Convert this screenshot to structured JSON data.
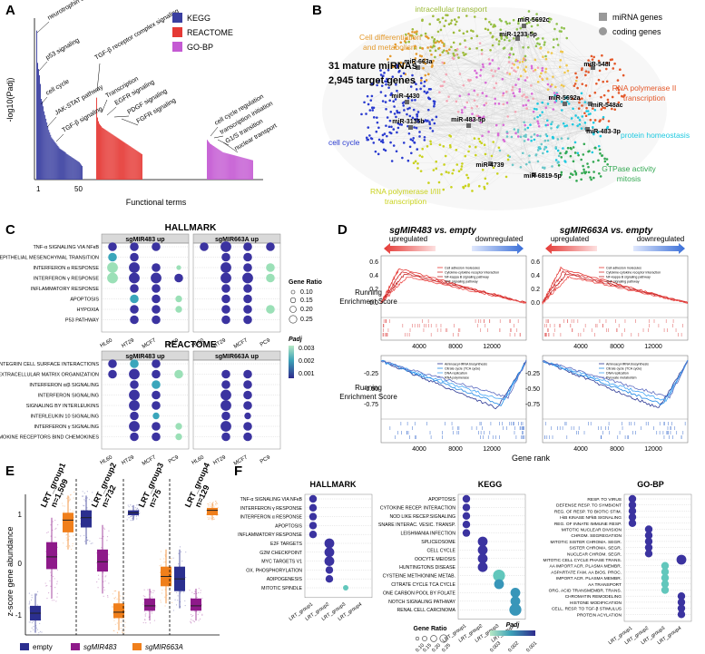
{
  "panels": {
    "A": {
      "letter": "A",
      "ylabel": "-log10(Padj)",
      "xlabel": "Functional terms",
      "legend": [
        {
          "label": "KEGG",
          "color": "#3a3fa0"
        },
        {
          "label": "REACTOME",
          "color": "#e53935"
        },
        {
          "label": "GO-BP",
          "color": "#c45ad3"
        }
      ],
      "annotations": {
        "kegg": [
          "neurotrophin signaling",
          "p53 signaling",
          "cell cycle",
          "JAK-STAT pathway",
          "TGF-β signaling"
        ],
        "reactome": [
          "TGF-β receptor complex signaling",
          "Transcription",
          "EGFR signaling",
          "PDGF signaling",
          "FGFR signaling"
        ],
        "gobp": [
          "cell cycle regulation",
          "transcription initiation",
          "G1/S transition",
          "nuclear transport"
        ]
      },
      "tick1": "1",
      "tick50": "50"
    },
    "B": {
      "letter": "B",
      "summary_line1": "31 mature miRNAs",
      "summary_line2": "2,945 target genes",
      "legend_mirna": "miRNA genes",
      "legend_coding": "coding genes",
      "mirnas": [
        "miR-663a",
        "miR-5692c",
        "miR-1233-5p",
        "miR-548I",
        "miR-4430",
        "miR-3135b",
        "miR-483-5p",
        "miR-5692a",
        "miR-548ac",
        "miR-483-3p",
        "miR-4739",
        "miR-6819-5p"
      ],
      "clusters": [
        {
          "label": "intracellular transport",
          "color": "#9dbb3a"
        },
        {
          "label": "Cell differentiation\nand metabolism",
          "color": "#e49a2e"
        },
        {
          "label": "RNA polymerase II\ntranscription",
          "color": "#e4582a"
        },
        {
          "label": "cell cycle",
          "color": "#2a3bd0"
        },
        {
          "label": "protein homeostasis",
          "color": "#1fc9e0"
        },
        {
          "label": "GTPase activity\nmitosis",
          "color": "#33a852"
        },
        {
          "label": "RNA polymerase I/III\ntranscription",
          "color": "#c9d21d"
        }
      ]
    },
    "C": {
      "letter": "C",
      "hallmark_title": "HALLMARK",
      "reactome_title": "REACTOME",
      "strip_left": "sgMIR483 up",
      "strip_right": "sgMIR663A up",
      "cell_lines": [
        "HL60",
        "HT29",
        "MCF7",
        "PC9"
      ],
      "hallmark_terms": [
        "TNF-α SIGNALING VIA NFκB",
        "EPITHELIAL MESENCHYMAL TRANSITION",
        "INTERFERON α RESPONSE",
        "INTERFERON γ RESPONSE",
        "INFLAMMATORY RESPONSE",
        "APOPTOSIS",
        "HYPOXIA",
        "P53 PATHWAY"
      ],
      "reactome_terms": [
        "INTEGRIN CELL SURFACE INTERACTIONS",
        "EXTRACELLULAR MATRIX ORGANIZATION",
        "INTERFERON α/β SIGNALING",
        "INTERFERON SIGNALING",
        "SIGNALING BY INTERLEUKINS",
        "INTERLEUKIN 10 SIGNALING",
        "INTERFERON γ SIGNALING",
        "CHEMOKINE RECEPTORS BIND CHEMOKINES"
      ],
      "gene_ratio_title": "Gene Ratio",
      "gene_ratio_values": [
        "0.10",
        "0.15",
        "0.20",
        "0.25"
      ],
      "padj_title": "Padj",
      "padj_values": [
        "0.003",
        "0.002",
        "0.001"
      ]
    },
    "D": {
      "letter": "D",
      "titles": [
        "sgMIR483 vs. empty",
        "sgMIR663A vs. empty"
      ],
      "upregulated": "upregulated",
      "downregulated": "downregulated",
      "ylabel_line1": "Running",
      "ylabel_line2": "Enrichment Score",
      "top_ticks": [
        "0.6",
        "0.4",
        "0.2",
        "0.0"
      ],
      "bottom_ticks": [
        "-0.25",
        "-0.50",
        "-0.75"
      ],
      "x_ticks": [
        "4000",
        "8000",
        "12000"
      ],
      "xlabel": "Gene rank",
      "up_legend": [
        "Cell adhesion molecules",
        "Cytokine-cytokine receptor interaction",
        "NF-kappa B signaling pathway",
        "TNF signaling pathway"
      ],
      "down_legend": [
        "Aminoacyl-tRNA biosynthesis",
        "Citrate cycle (TCA cycle)",
        "DNA replication",
        "RNA polymerase"
      ],
      "down_legend_right": [
        "Aminoacyl-tRNA biosynthesis",
        "Citrate cycle (TCA cycle)",
        "DNA replication",
        "Pyruvate metabolism"
      ]
    },
    "E": {
      "letter": "E",
      "ylabel": "z-score gene abundance",
      "groups": [
        {
          "name": "LRT_group1",
          "n": "n=1,509"
        },
        {
          "name": "LRT_group2",
          "n": "n=732"
        },
        {
          "name": "LRT_group3",
          "n": "n=75"
        },
        {
          "name": "LRT_group4",
          "n": "n=129"
        }
      ],
      "yticks": [
        "1",
        "0",
        "-1"
      ],
      "legend": [
        {
          "label": "empty",
          "color": "#2b2f8f"
        },
        {
          "label": "sgMIR483",
          "color": "#8e1a8a"
        },
        {
          "label": "sgMIR663A",
          "color": "#f07f1b"
        }
      ]
    },
    "F": {
      "letter": "F",
      "titles": [
        "HALLMARK",
        "KEGG",
        "GO-BP"
      ],
      "groups": [
        "LRT_group1",
        "LRT_group2",
        "LRT_group3",
        "LRT_group4"
      ],
      "hallmark_terms": [
        "TNF-α SIGNALING VIA NFκB",
        "INTERFERON γ RESPONSE",
        "INTERFERON α RESPONSE",
        "APOPTOSIS",
        "INFLAMMATORY RESPONSE",
        "E2F TARGETS",
        "G2M CHECKPOINT",
        "MYC TARGETS V1",
        "OX. PHOSPHORYLATION",
        "ADIPOGENESIS",
        "MITOTIC SPINDLE"
      ],
      "kegg_terms": [
        "APOPTOSIS",
        "CYTOKINE RECEP. INTERACTION",
        "NOD LIKE RECEP.SIGNALING",
        "SNARE INTERAC. VESIC. TRANSP.",
        "LEISHMANIA INFECTION",
        "SPLICEOSOME",
        "CELL CYCLE",
        "OOCYTE MEIOSIS",
        "HUNTINGTONS DISEASE",
        "CYSTEINE METHIONINE METAB.",
        "CITRATE CYCLE TCA CYCLE",
        "ONE CARBON POOL BY FOLATE",
        "NOTCH SIGNALING PATHWAY",
        "RENAL CELL CARCINOMA"
      ],
      "gobp_terms": [
        "RESP. TO VIRUS",
        "DEFENSE RESP. TO SYMBIONT",
        "REG. OF RESP. TO BIOTIC STIM.",
        "I-kB KINASE NFkB SIGNALING",
        "REG. OF INNATE IMMUNE RESP.",
        "MITOTIC NUCLEAR DIVISION",
        "CHROM. SEGREGATION",
        "MITOTIC SISTER CHROMA. SEGR.",
        "SISTER CHROMA. SEGR.",
        "NUCLEAR CHROM. SEGR.",
        "MITOTIC CELL CYCLE PHASE TRANS.",
        "AA IMPORT ACR. PLASMA MEMBR.",
        "ASPARTATE FAM. AA BIOS. PROC.",
        "IMPORT ACR. PLASMA MEMBR.",
        "AA TRANSPORT",
        "ORG. ACID TRANSMEMBR. TRANS.",
        "CHROMATIN REMODELING",
        "HISTONE MODIFICATION",
        "CELL. RESP. TO TGF-β STIMULUS",
        "PROTEIN ACYLATION"
      ],
      "gene_ratio_title": "Gene Ratio",
      "gene_ratio_values": [
        "0.10",
        "0.15",
        "0.20",
        "0.25"
      ],
      "padj_title": "Padj",
      "padj_values": [
        "0.003",
        "0.002",
        "0.001"
      ]
    }
  },
  "chart_data": [
    {
      "type": "bar",
      "panel": "A",
      "title": "",
      "xlabel": "Functional terms",
      "ylabel": "-log10(Padj)",
      "series": [
        {
          "name": "KEGG",
          "values": [
            12,
            9.4,
            8.9,
            8.4,
            7.7,
            6.5,
            6.3,
            5.9,
            5.5,
            5.2,
            4.9,
            4.6,
            4.3,
            4.0,
            3.8,
            3.6,
            3.4,
            3.3,
            3.2,
            3.1,
            3.0,
            2.9,
            2.8,
            2.7,
            2.6,
            2.5,
            2.45,
            2.4,
            2.35,
            2.3,
            2.25,
            2.2,
            2.1,
            2.05,
            2.0,
            1.95,
            1.9,
            1.85,
            1.8,
            1.75,
            1.7,
            1.65,
            1.6,
            1.55,
            1.5,
            1.45,
            1.4,
            1.3,
            1.2,
            1.1
          ]
        },
        {
          "name": "REACTOME",
          "values": [
            6.6,
            5.0,
            4.7,
            4.5,
            4.4,
            4.3,
            4.2,
            4.15,
            4.1,
            4.05,
            4.0,
            3.95,
            3.9,
            3.85,
            3.8,
            3.75,
            3.7,
            3.65,
            3.6,
            3.55,
            3.5,
            3.45,
            3.4,
            3.35,
            3.3,
            3.25,
            3.2,
            3.15,
            3.1,
            3.05,
            3.0,
            2.95,
            2.9,
            2.85,
            2.8,
            2.75,
            2.7,
            2.65,
            2.6,
            2.55,
            2.5,
            2.45,
            2.4,
            2.35,
            2.3,
            2.25,
            2.2,
            2.15,
            2.1,
            2.05
          ]
        },
        {
          "name": "GO-BP",
          "values": [
            3.2,
            3.1,
            3.0,
            2.9,
            2.85,
            2.8,
            2.75,
            2.7,
            2.65,
            2.6,
            2.55,
            2.5,
            2.45,
            2.4,
            2.35,
            2.3,
            2.25,
            2.2,
            2.18,
            2.16,
            2.14,
            2.12,
            2.1,
            2.08,
            2.06,
            2.04,
            2.02,
            2.0,
            1.98,
            1.96,
            1.94,
            1.92,
            1.9,
            1.88,
            1.86,
            1.84,
            1.82,
            1.8,
            1.78,
            1.76,
            1.74,
            1.72,
            1.7,
            1.68,
            1.66,
            1.64,
            1.62,
            1.6,
            1.58,
            1.56
          ]
        }
      ]
    }
  ]
}
